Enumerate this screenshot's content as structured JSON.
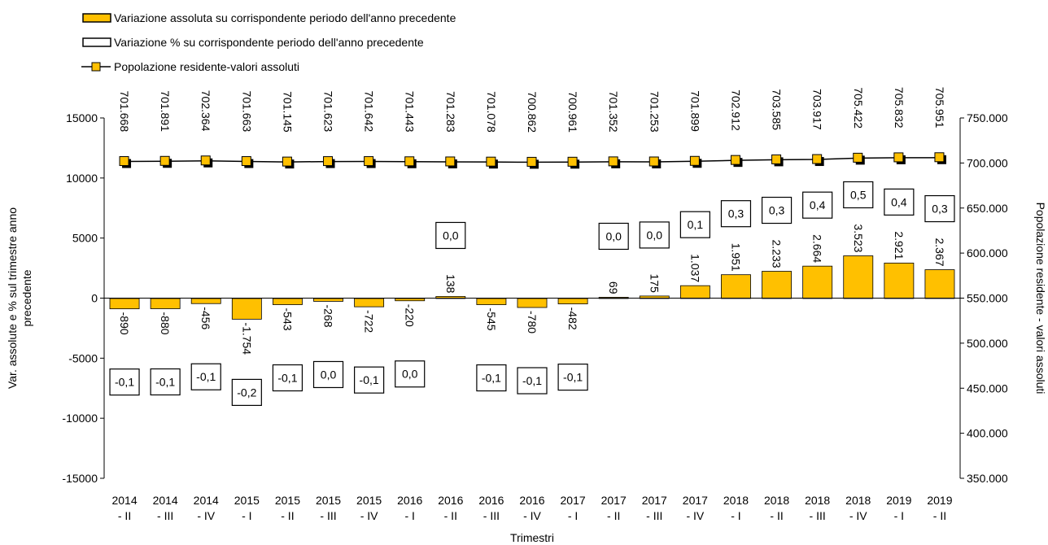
{
  "chart_data": {
    "type": "bar",
    "categories": [
      "2014 - II",
      "2014 - III",
      "2014 - IV",
      "2015 - I",
      "2015 - II",
      "2015 - III",
      "2015 - IV",
      "2016 - I",
      "2016 - II",
      "2016 - III",
      "2016 - IV",
      "2017 - I",
      "2017 - II",
      "2017 - III",
      "2017 - IV",
      "2018 - I",
      "2018 - II",
      "2018 - III",
      "2018 - IV",
      "2019 - I",
      "2019 - II"
    ],
    "series": [
      {
        "name": "Variazione assoluta su corrispondente periodo dell'anno precedente",
        "color": "#ffc000",
        "values": [
          -890,
          -880,
          -456,
          -1754,
          -543,
          -268,
          -722,
          -220,
          138,
          -545,
          -780,
          -482,
          69,
          175,
          1037,
          1951,
          2233,
          2664,
          3523,
          2921,
          2367
        ],
        "value_labels": [
          "-890",
          "-880",
          "-456",
          "-1.754",
          "-543",
          "-268",
          "-722",
          "-220",
          "138",
          "-545",
          "-780",
          "-482",
          "69",
          "175",
          "1.037",
          "1.951",
          "2.233",
          "2.664",
          "3.523",
          "2.921",
          "2.367"
        ]
      },
      {
        "name": "Variazione % su corrispondente periodo dell'anno precedente",
        "color": "#ffffff",
        "values": [
          -0.1,
          -0.1,
          -0.1,
          -0.2,
          -0.1,
          0.0,
          -0.1,
          0.0,
          0.0,
          -0.1,
          -0.1,
          -0.1,
          0.0,
          0.0,
          0.1,
          0.3,
          0.3,
          0.4,
          0.5,
          0.4,
          0.3
        ],
        "value_labels": [
          "-0,1",
          "-0,1",
          "-0,1",
          "-0,2",
          "-0,1",
          "0,0",
          "-0,1",
          "0,0",
          "0,0",
          "-0,1",
          "-0,1",
          "-0,1",
          "0,0",
          "0,0",
          "0,1",
          "0,3",
          "0,3",
          "0,4",
          "0,5",
          "0,4",
          "0,3"
        ]
      },
      {
        "name": "Popolazione residente-valori assoluti",
        "type": "line",
        "axis": "y2",
        "color": "#ffc000",
        "values": [
          701668,
          701891,
          702364,
          701663,
          701145,
          701623,
          701642,
          701443,
          701283,
          701078,
          700862,
          700961,
          701352,
          701253,
          701899,
          702912,
          703585,
          703917,
          705422,
          705832,
          705951
        ],
        "value_labels": [
          "701.668",
          "701.891",
          "702.364",
          "701.663",
          "701.145",
          "701.623",
          "701.642",
          "701.443",
          "701.283",
          "701.078",
          "700.862",
          "700.961",
          "701.352",
          "701.253",
          "701.899",
          "702.912",
          "703.585",
          "703.917",
          "705.422",
          "705.832",
          "705.951"
        ]
      }
    ],
    "xlabel": "Trimestri",
    "ylabel": "Var. assolute e % sul trimestre anno precedente",
    "y2label": "Popolazione residente - valori assoluti",
    "ylim": [
      -15000,
      15000
    ],
    "yticks": [
      -15000,
      -10000,
      -5000,
      0,
      5000,
      10000,
      15000
    ],
    "y2lim": [
      350000,
      750000
    ],
    "y2ticks": [
      {
        "value": 350000,
        "label": "350.000"
      },
      {
        "value": 400000,
        "label": "400.000"
      },
      {
        "value": 450000,
        "label": "450.000"
      },
      {
        "value": 500000,
        "label": "500.000"
      },
      {
        "value": 550000,
        "label": "550.000"
      },
      {
        "value": 600000,
        "label": "600.000"
      },
      {
        "value": 650000,
        "label": "650.000"
      },
      {
        "value": 700000,
        "label": "700.000"
      },
      {
        "value": 750000,
        "label": "750.000"
      }
    ]
  }
}
